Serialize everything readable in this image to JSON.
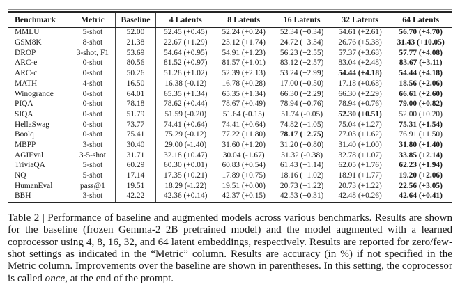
{
  "table": {
    "headers": [
      "Benchmark",
      "Metric",
      "Baseline",
      "4 Latents",
      "8 Latents",
      "16 Latents",
      "32 Latents",
      "64 Latents"
    ],
    "rows": [
      {
        "benchmark": "MMLU",
        "metric": "5-shot",
        "baseline": "52.00",
        "cells": [
          "52.45 (+0.45)",
          "52.24 (+0.24)",
          "52.34 (+0.34)",
          "54.61 (+2.61)",
          "56.70 (+4.70)"
        ],
        "bold": [
          4
        ]
      },
      {
        "benchmark": "GSM8K",
        "metric": "8-shot",
        "baseline": "21.38",
        "cells": [
          "22.67 (+1.29)",
          "23.12 (+1.74)",
          "24.72 (+3.34)",
          "26.76 (+5.38)",
          "31.43 (+10.05)"
        ],
        "bold": [
          4
        ]
      },
      {
        "benchmark": "DROP",
        "metric": "3-shot, F1",
        "baseline": "53.69",
        "cells": [
          "54.64 (+0.95)",
          "54.91 (+1.23)",
          "56.23 (+2.55)",
          "57.37 (+3.68)",
          "57.77 (+4.08)"
        ],
        "bold": [
          4
        ]
      },
      {
        "benchmark": "ARC-e",
        "metric": "0-shot",
        "baseline": "80.56",
        "cells": [
          "81.52 (+0.97)",
          "81.57 (+1.01)",
          "83.12 (+2.57)",
          "83.04 (+2.48)",
          "83.67 (+3.11)"
        ],
        "bold": [
          4
        ]
      },
      {
        "benchmark": "ARC-c",
        "metric": "0-shot",
        "baseline": "50.26",
        "cells": [
          "51.28 (+1.02)",
          "52.39 (+2.13)",
          "53.24 (+2.99)",
          "54.44 (+4.18)",
          "54.44 (+4.18)"
        ],
        "bold": [
          3,
          4
        ]
      },
      {
        "benchmark": "MATH",
        "metric": "4-shot",
        "baseline": "16.50",
        "cells": [
          "16.38 (-0.12)",
          "16.78 (+0.28)",
          "17.00 (+0.50)",
          "17.18 (+0.68)",
          "18.56 (+2.06)"
        ],
        "bold": [
          4
        ]
      },
      {
        "benchmark": "Winogrande",
        "metric": "0-shot",
        "baseline": "64.01",
        "cells": [
          "65.35 (+1.34)",
          "65.35 (+1.34)",
          "66.30 (+2.29)",
          "66.30 (+2.29)",
          "66.61 (+2.60)"
        ],
        "bold": [
          4
        ]
      },
      {
        "benchmark": "PIQA",
        "metric": "0-shot",
        "baseline": "78.18",
        "cells": [
          "78.62 (+0.44)",
          "78.67 (+0.49)",
          "78.94 (+0.76)",
          "78.94 (+0.76)",
          "79.00 (+0.82)"
        ],
        "bold": [
          4
        ]
      },
      {
        "benchmark": "SIQA",
        "metric": "0-shot",
        "baseline": "51.79",
        "cells": [
          "51.59 (-0.20)",
          "51.64 (-0.15)",
          "51.74 (-0.05)",
          "52.30 (+0.51)",
          "52.00 (+0.20)"
        ],
        "bold": [
          3
        ]
      },
      {
        "benchmark": "HellaSwag",
        "metric": "0-shot",
        "baseline": "73.77",
        "cells": [
          "74.41 (+0.64)",
          "74.41 (+0.64)",
          "74.82 (+1.05)",
          "75.04 (+1.27)",
          "75.31 (+1.54)"
        ],
        "bold": [
          4
        ]
      },
      {
        "benchmark": "Boolq",
        "metric": "0-shot",
        "baseline": "75.41",
        "cells": [
          "75.29 (-0.12)",
          "77.22 (+1.80)",
          "78.17 (+2.75)",
          "77.03 (+1.62)",
          "76.91 (+1.50)"
        ],
        "bold": [
          2
        ]
      },
      {
        "benchmark": "MBPP",
        "metric": "3-shot",
        "baseline": "30.40",
        "cells": [
          "29.00 (-1.40)",
          "31.60 (+1.20)",
          "31.20 (+0.80)",
          "31.40 (+1.00)",
          "31.80 (+1.40)"
        ],
        "bold": [
          4
        ]
      },
      {
        "benchmark": "AGIEval",
        "metric": "3-5-shot",
        "baseline": "31.71",
        "cells": [
          "32.18 (+0.47)",
          "30.04 (-1.67)",
          "31.32 (-0.38)",
          "32.78 (+1.07)",
          "33.85 (+2.14)"
        ],
        "bold": [
          4
        ]
      },
      {
        "benchmark": "TriviaQA",
        "metric": "5-shot",
        "baseline": "60.29",
        "cells": [
          "60.30 (+0.01)",
          "60.83 (+0.54)",
          "61.43 (+1.14)",
          "62.05 (+1.76)",
          "62.23 (+1.94)"
        ],
        "bold": [
          4
        ]
      },
      {
        "benchmark": "NQ",
        "metric": "5-shot",
        "baseline": "17.14",
        "cells": [
          "17.35 (+0.21)",
          "17.89 (+0.75)",
          "18.16 (+1.02)",
          "18.91 (+1.77)",
          "19.20 (+2.06)"
        ],
        "bold": [
          4
        ]
      },
      {
        "benchmark": "HumanEval",
        "metric": "pass@1",
        "baseline": "19.51",
        "cells": [
          "18.29 (-1.22)",
          "19.51 (+0.00)",
          "20.73 (+1.22)",
          "20.73 (+1.22)",
          "22.56 (+3.05)"
        ],
        "bold": [
          4
        ]
      },
      {
        "benchmark": "BBH",
        "metric": "3-shot",
        "baseline": "42.22",
        "cells": [
          "42.36 (+0.14)",
          "42.37 (+0.15)",
          "42.53 (+0.31)",
          "42.48 (+0.26)",
          "42.64 (+0.41)"
        ],
        "bold": [
          4
        ]
      }
    ]
  },
  "caption": {
    "part1": "Table 2 | Performance of baseline and augmented models across various benchmarks. Results are shown for the baseline (frozen Gemma-2 2B pretrained model) and the model augmented with a learned coprocessor using 4, 8, 16, 32, and 64 latent embeddings, respectively. Results are reported for zero/few-shot settings as indicated in the “Metric” column. Results are accuracy (in %) if not specified in the Metric column. Improvements over the baseline are shown in parentheses. In this setting, the coprocessor is called ",
    "italic_word": "once",
    "part2": ", at the end of the prompt."
  },
  "colors": {
    "background": "#ffffff",
    "text": "#1b1b1b",
    "rule": "#242424",
    "column_divider": "#424242"
  }
}
